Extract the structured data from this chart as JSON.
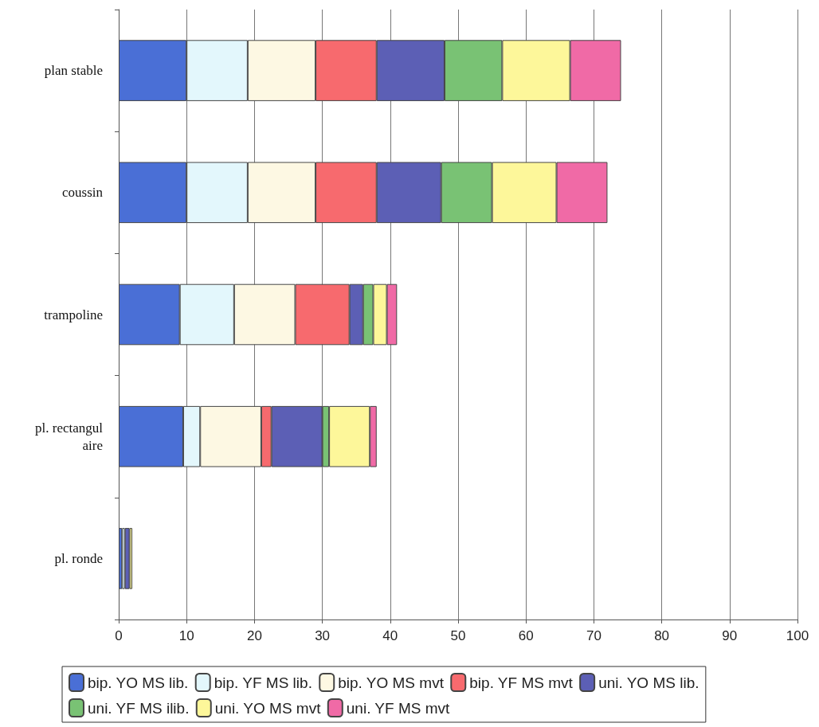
{
  "chart_data": {
    "type": "bar",
    "orientation": "horizontal",
    "stacked": true,
    "categories": [
      "plan stable",
      "coussin",
      "trampoline",
      "pl. rectangulaire",
      "pl. ronde"
    ],
    "series": [
      {
        "name": "bip. YO MS lib.",
        "color": "#4a6fd6",
        "values": [
          10,
          10,
          9,
          9.5,
          0.5
        ]
      },
      {
        "name": "bip. YF MS lib.",
        "color": "#e3f7fc",
        "values": [
          9,
          9,
          8,
          2.5,
          0.4
        ]
      },
      {
        "name": "bip. YO MS mvt",
        "color": "#fdf8e3",
        "values": [
          10,
          10,
          9,
          9,
          0
        ]
      },
      {
        "name": "bip. YF MS mvt",
        "color": "#f76a6e",
        "values": [
          9,
          9,
          8,
          1.5,
          0
        ]
      },
      {
        "name": "uni. YO MS lib.",
        "color": "#5c5fb5",
        "values": [
          10,
          9.5,
          2,
          7.5,
          0.7
        ]
      },
      {
        "name": "uni. YF MS ilib.",
        "color": "#79c274",
        "values": [
          8.5,
          7.5,
          1.5,
          1,
          0
        ]
      },
      {
        "name": "uni. YO MS mvt",
        "color": "#fdf79a",
        "values": [
          10,
          9.5,
          2,
          6,
          0.4
        ]
      },
      {
        "name": "uni. YF MS mvt",
        "color": "#f06aa6",
        "values": [
          7.5,
          7.5,
          1.5,
          1,
          0
        ]
      }
    ],
    "xlim": [
      0,
      100
    ],
    "xticks": [
      0,
      10,
      20,
      30,
      40,
      50,
      60,
      70,
      80,
      90,
      100
    ],
    "grid": "x",
    "legend": "bottom"
  }
}
